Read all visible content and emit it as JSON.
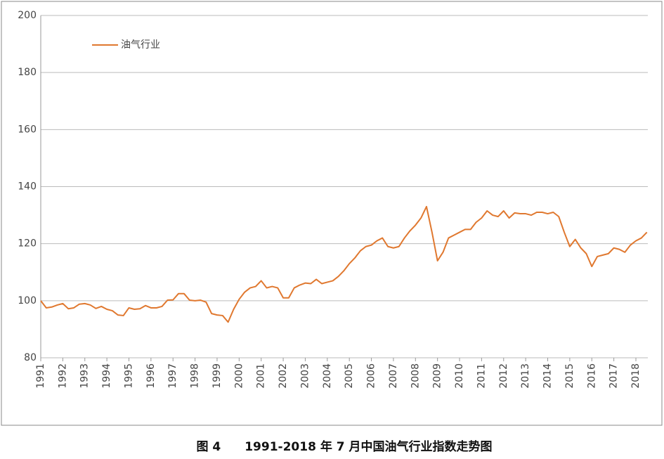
{
  "chart_data": {
    "type": "line",
    "caption": "图 4　　1991-2018 年 7 月中国油气行业指数走势图",
    "categories": [
      "1991",
      null,
      null,
      null,
      "1992",
      null,
      null,
      null,
      "1993",
      null,
      null,
      null,
      "1994",
      null,
      null,
      null,
      "1995",
      null,
      null,
      null,
      "1996",
      null,
      null,
      null,
      "1997",
      null,
      null,
      null,
      "1998",
      null,
      null,
      null,
      "1999",
      null,
      null,
      null,
      "2000",
      null,
      null,
      null,
      "2001",
      null,
      null,
      null,
      "2002",
      null,
      null,
      null,
      "2003",
      null,
      null,
      null,
      "2004",
      null,
      null,
      null,
      "2005",
      null,
      null,
      null,
      "2006",
      null,
      null,
      null,
      "2007",
      null,
      null,
      null,
      "2008",
      null,
      null,
      null,
      "2009",
      null,
      null,
      null,
      "2010",
      null,
      null,
      null,
      "2011",
      null,
      null,
      null,
      "2012",
      null,
      null,
      null,
      "2013",
      null,
      null,
      null,
      "2014",
      null,
      null,
      null,
      "2015",
      null,
      null,
      null,
      "2016",
      null,
      null,
      null,
      "2017",
      null,
      null,
      null,
      "2018",
      null,
      null
    ],
    "series": [
      {
        "name": "油气行业",
        "color": "#e0782f",
        "values": [
          100,
          97.5,
          97.8,
          98.5,
          99,
          97.2,
          97.5,
          98.8,
          99,
          98.5,
          97.3,
          98,
          97,
          96.5,
          95,
          94.8,
          97.5,
          97,
          97.2,
          98.3,
          97.5,
          97.5,
          98,
          100.2,
          100.3,
          102.5,
          102.5,
          100.2,
          100,
          100.2,
          99.5,
          95.5,
          95,
          94.8,
          92.5,
          97,
          100.5,
          103,
          104.5,
          105,
          107,
          104.5,
          105,
          104.5,
          101,
          101,
          104.5,
          105.5,
          106.2,
          106,
          107.5,
          106,
          106.5,
          107,
          108.5,
          110.5,
          113,
          115,
          117.5,
          119,
          119.5,
          121,
          122,
          119,
          118.5,
          119,
          122,
          124.5,
          126.5,
          129,
          133,
          124,
          114,
          117,
          122,
          123,
          124,
          125,
          125,
          127.5,
          129,
          131.5,
          130,
          129.5,
          131.5,
          129,
          130.8,
          130.5,
          130.5,
          130,
          131,
          131,
          130.5,
          131,
          129.5,
          124,
          119,
          121.5,
          118.5,
          116.5,
          112,
          115.5,
          116,
          116.5,
          118.5,
          118,
          117,
          119.5,
          121,
          122,
          124
        ]
      }
    ],
    "ylim": [
      80,
      200
    ],
    "yticks": [
      80,
      100,
      120,
      140,
      160,
      180,
      200
    ],
    "grid": true
  }
}
